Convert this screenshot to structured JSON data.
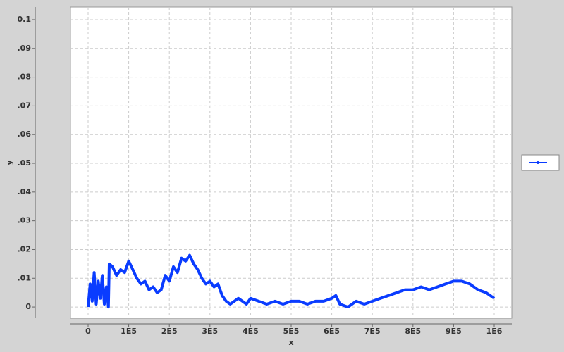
{
  "chart_data": {
    "type": "line",
    "x_label": "x",
    "y_label": "y",
    "xlim": [
      -43400,
      1043400
    ],
    "ylim": [
      -0.0039,
      0.1044
    ],
    "xticks": [
      0,
      {
        "value": 100000,
        "label": "1E5"
      },
      {
        "value": 200000,
        "label": "2E5"
      },
      {
        "value": 300000,
        "label": "3E5"
      },
      {
        "value": 400000,
        "label": "4E5"
      },
      {
        "value": 500000,
        "label": "5E5"
      },
      {
        "value": 600000,
        "label": "6E5"
      },
      {
        "value": 700000,
        "label": "7E5"
      },
      {
        "value": 800000,
        "label": "8E5"
      },
      {
        "value": 900000,
        "label": "9E5"
      },
      {
        "value": 1000000,
        "label": "1E6"
      }
    ],
    "yticks": [
      0,
      {
        "value": 0.01,
        "label": ".01"
      },
      {
        "value": 0.02,
        "label": ".02"
      },
      {
        "value": 0.03,
        "label": ".03"
      },
      {
        "value": 0.04,
        "label": ".04"
      },
      {
        "value": 0.05,
        "label": ".05"
      },
      {
        "value": 0.06,
        "label": ".06"
      },
      {
        "value": 0.07,
        "label": ".07"
      },
      {
        "value": 0.08,
        "label": ".08"
      },
      {
        "value": 0.09,
        "label": ".09"
      },
      0.1
    ],
    "grid": true,
    "legend": "right",
    "series": [
      {
        "color": "#0a3cff",
        "x": [
          0,
          5000,
          10000,
          15000,
          20000,
          25000,
          30000,
          35000,
          40000,
          45000,
          50000,
          52000,
          60000,
          70000,
          80000,
          90000,
          100000,
          110000,
          120000,
          130000,
          140000,
          150000,
          160000,
          170000,
          180000,
          190000,
          200000,
          210000,
          220000,
          230000,
          240000,
          250000,
          260000,
          270000,
          280000,
          290000,
          300000,
          310000,
          320000,
          330000,
          340000,
          350000,
          360000,
          370000,
          380000,
          390000,
          400000,
          420000,
          440000,
          460000,
          480000,
          500000,
          520000,
          540000,
          560000,
          580000,
          600000,
          610000,
          620000,
          640000,
          660000,
          680000,
          700000,
          720000,
          740000,
          760000,
          780000,
          800000,
          820000,
          840000,
          860000,
          880000,
          900000,
          920000,
          940000,
          960000,
          980000,
          1000000
        ],
        "values": [
          0,
          0.008,
          0.002,
          0.012,
          0.001,
          0.009,
          0.003,
          0.011,
          0.001,
          0.007,
          0.0,
          0.015,
          0.014,
          0.011,
          0.013,
          0.012,
          0.016,
          0.013,
          0.01,
          0.008,
          0.009,
          0.006,
          0.007,
          0.005,
          0.006,
          0.011,
          0.009,
          0.014,
          0.012,
          0.017,
          0.016,
          0.018,
          0.015,
          0.013,
          0.01,
          0.008,
          0.009,
          0.007,
          0.008,
          0.004,
          0.002,
          0.001,
          0.002,
          0.003,
          0.002,
          0.001,
          0.003,
          0.002,
          0.001,
          0.002,
          0.001,
          0.002,
          0.002,
          0.001,
          0.002,
          0.002,
          0.003,
          0.004,
          0.001,
          0.0,
          0.002,
          0.001,
          0.002,
          0.003,
          0.004,
          0.005,
          0.006,
          0.006,
          0.007,
          0.006,
          0.007,
          0.008,
          0.009,
          0.009,
          0.008,
          0.006,
          0.005,
          0.003
        ]
      }
    ]
  }
}
